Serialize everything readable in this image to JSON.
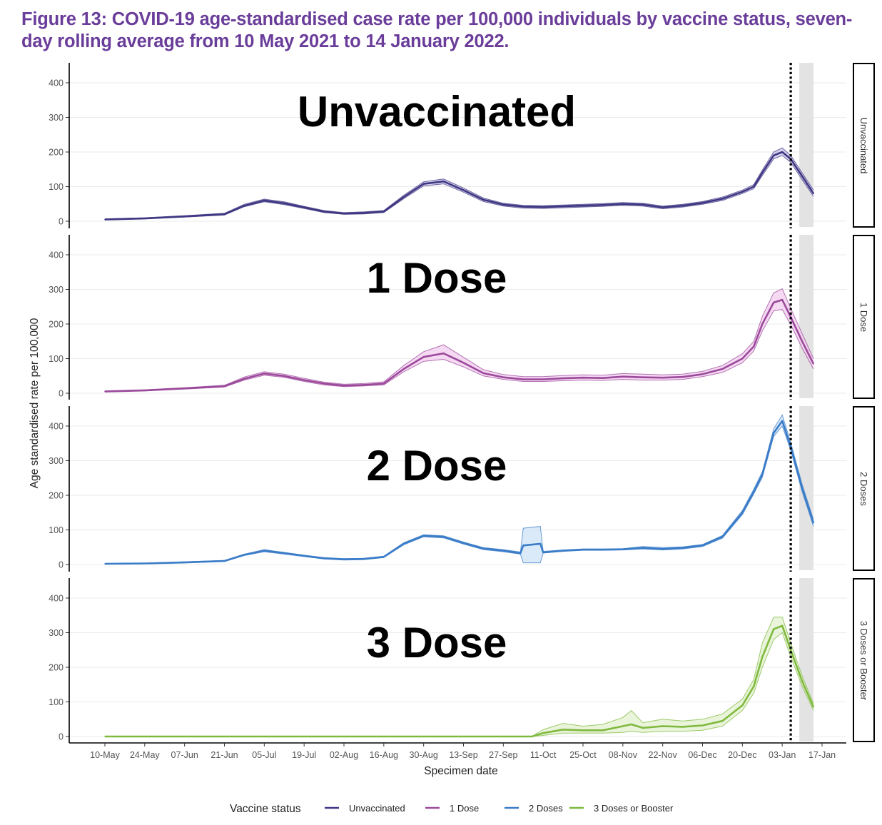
{
  "title": "Figure 13: COVID-19 age-standardised case rate per 100,000 individuals by vaccine status, seven-day rolling average from 10 May 2021 to 14 January 2022.",
  "chart_data": {
    "type": "line",
    "title": "Figure 13: COVID-19 age-standardised case rate per 100,000 individuals by vaccine status, seven-day rolling average from 10 May 2021 to 14 January 2022.",
    "xlabel": "Specimen date",
    "ylabel": "Age standardised rate per 100,000",
    "x_start_date": "10-May-2021",
    "x_unit": "days since 10-May",
    "x_ticks": [
      "10-May",
      "24-May",
      "07-Jun",
      "21-Jun",
      "05-Jul",
      "19-Jul",
      "02-Aug",
      "16-Aug",
      "30-Aug",
      "13-Sep",
      "27-Sep",
      "11-Oct",
      "25-Oct",
      "08-Nov",
      "22-Nov",
      "06-Dec",
      "20-Dec",
      "03-Jan",
      "17-Jan"
    ],
    "xlim": [
      -7,
      262
    ],
    "ylim": [
      0,
      450
    ],
    "y_ticks": [
      0,
      100,
      200,
      300,
      400
    ],
    "grid": true,
    "facets": "rows",
    "reference_line": {
      "style": "dotted",
      "day": 241,
      "date": "05-Jan"
    },
    "shaded_region": {
      "color": "#e3e3e3",
      "day_from": 244,
      "day_to": 249
    },
    "legend": {
      "title": "Vaccine status",
      "position": "bottom",
      "entries": [
        {
          "label": "Unvaccinated",
          "color": "#3f3782"
        },
        {
          "label": "1 Dose",
          "color": "#9b4a9b"
        },
        {
          "label": "2 Doses",
          "color": "#3a7cc8"
        },
        {
          "label": "3 Doses or Booster",
          "color": "#7fb93e"
        }
      ]
    },
    "series": [
      {
        "name": "Unvaccinated",
        "panel_label": "Unvaccinated",
        "strip_label": "Unvaccinated",
        "color": "#3f3782",
        "band_color": "#c9c4e8",
        "x": [
          0,
          14,
          28,
          42,
          49,
          56,
          63,
          70,
          77,
          84,
          91,
          98,
          105,
          112,
          119,
          126,
          133,
          140,
          147,
          154,
          161,
          168,
          175,
          182,
          189,
          196,
          203,
          210,
          217,
          224,
          228,
          231,
          235,
          238,
          241,
          245,
          249
        ],
        "values": [
          5,
          8,
          14,
          20,
          45,
          60,
          52,
          40,
          28,
          22,
          24,
          28,
          70,
          108,
          115,
          90,
          62,
          48,
          42,
          41,
          43,
          45,
          47,
          50,
          48,
          40,
          45,
          53,
          65,
          85,
          100,
          140,
          190,
          200,
          180,
          130,
          80
        ],
        "lower": [
          4,
          7,
          12,
          18,
          42,
          56,
          48,
          37,
          25,
          20,
          21,
          25,
          65,
          102,
          108,
          84,
          57,
          44,
          38,
          37,
          39,
          41,
          43,
          46,
          44,
          36,
          41,
          49,
          60,
          80,
          94,
          132,
          180,
          190,
          170,
          120,
          72
        ],
        "upper": [
          7,
          10,
          16,
          23,
          49,
          64,
          56,
          43,
          31,
          25,
          27,
          31,
          75,
          114,
          122,
          96,
          67,
          52,
          46,
          45,
          47,
          49,
          51,
          54,
          52,
          44,
          49,
          57,
          70,
          90,
          106,
          148,
          200,
          212,
          190,
          140,
          90
        ]
      },
      {
        "name": "1 Dose",
        "panel_label": "1 Dose",
        "strip_label": "1 Dose",
        "color": "#9b4a9b",
        "band_color": "#f3cdef",
        "x": [
          0,
          14,
          28,
          42,
          49,
          56,
          63,
          70,
          77,
          84,
          91,
          98,
          105,
          112,
          119,
          126,
          133,
          140,
          147,
          154,
          161,
          168,
          175,
          182,
          189,
          196,
          203,
          210,
          217,
          224,
          228,
          231,
          235,
          238,
          241,
          245,
          249
        ],
        "values": [
          5,
          8,
          14,
          20,
          42,
          57,
          50,
          38,
          28,
          22,
          24,
          28,
          70,
          105,
          115,
          88,
          58,
          46,
          40,
          40,
          43,
          45,
          44,
          48,
          46,
          45,
          47,
          55,
          70,
          100,
          135,
          200,
          262,
          270,
          220,
          150,
          85
        ],
        "lower": [
          4,
          7,
          12,
          18,
          38,
          52,
          46,
          34,
          24,
          19,
          21,
          24,
          62,
          92,
          98,
          76,
          50,
          40,
          34,
          34,
          36,
          38,
          37,
          40,
          38,
          38,
          40,
          48,
          60,
          88,
          122,
          180,
          238,
          242,
          198,
          130,
          70
        ],
        "upper": [
          7,
          10,
          16,
          23,
          47,
          62,
          55,
          43,
          32,
          26,
          28,
          33,
          80,
          120,
          140,
          104,
          68,
          54,
          48,
          48,
          51,
          53,
          52,
          57,
          55,
          53,
          55,
          63,
          80,
          114,
          150,
          222,
          290,
          302,
          245,
          172,
          100
        ]
      },
      {
        "name": "2 Doses",
        "panel_label": "2 Dose",
        "strip_label": "2 Doses",
        "color": "#3a7cc8",
        "band_color": "#cfe3f6",
        "x": [
          0,
          14,
          28,
          42,
          49,
          56,
          63,
          70,
          77,
          84,
          91,
          98,
          105,
          112,
          119,
          126,
          133,
          140,
          146,
          147,
          153,
          154,
          161,
          168,
          175,
          182,
          189,
          196,
          203,
          210,
          217,
          224,
          228,
          231,
          235,
          238,
          241,
          245,
          249
        ],
        "values": [
          2,
          3,
          6,
          10,
          28,
          40,
          33,
          25,
          18,
          15,
          16,
          22,
          60,
          83,
          80,
          62,
          46,
          40,
          33,
          55,
          60,
          35,
          40,
          43,
          43,
          44,
          48,
          45,
          48,
          55,
          80,
          150,
          210,
          260,
          380,
          415,
          340,
          220,
          120
        ],
        "lower": [
          1,
          2,
          5,
          9,
          26,
          37,
          30,
          23,
          16,
          13,
          14,
          20,
          57,
          80,
          77,
          59,
          43,
          37,
          30,
          5,
          5,
          33,
          38,
          41,
          41,
          42,
          45,
          42,
          45,
          52,
          76,
          144,
          204,
          252,
          370,
          400,
          330,
          210,
          110
        ],
        "upper": [
          3,
          4,
          8,
          12,
          30,
          43,
          35,
          27,
          20,
          17,
          18,
          24,
          63,
          86,
          83,
          65,
          49,
          43,
          36,
          105,
          110,
          38,
          42,
          45,
          45,
          46,
          52,
          49,
          51,
          58,
          84,
          156,
          218,
          268,
          392,
          432,
          352,
          232,
          130
        ]
      },
      {
        "name": "3 Doses or Booster",
        "panel_label": "3 Dose",
        "strip_label": "3 Doses or Booster",
        "color": "#7fb93e",
        "band_color": "#e1f0cd",
        "x": [
          0,
          14,
          28,
          42,
          56,
          70,
          84,
          98,
          112,
          126,
          140,
          150,
          154,
          161,
          168,
          175,
          182,
          185,
          189,
          196,
          203,
          210,
          217,
          224,
          228,
          231,
          235,
          238,
          241,
          245,
          249
        ],
        "values": [
          0,
          0,
          0,
          0,
          0,
          0,
          0,
          0,
          0,
          0,
          0,
          0,
          10,
          20,
          18,
          18,
          30,
          35,
          25,
          30,
          28,
          32,
          45,
          90,
          145,
          230,
          310,
          320,
          250,
          160,
          85
        ],
        "lower": [
          0,
          0,
          0,
          0,
          0,
          0,
          0,
          0,
          0,
          0,
          0,
          0,
          3,
          10,
          10,
          10,
          12,
          15,
          12,
          15,
          15,
          18,
          30,
          75,
          125,
          200,
          280,
          300,
          230,
          145,
          75
        ],
        "upper": [
          0,
          0,
          0,
          0,
          0,
          0,
          0,
          0,
          0,
          0,
          0,
          0,
          20,
          38,
          30,
          35,
          55,
          75,
          40,
          50,
          45,
          50,
          65,
          108,
          165,
          270,
          345,
          345,
          270,
          175,
          95
        ]
      }
    ]
  }
}
